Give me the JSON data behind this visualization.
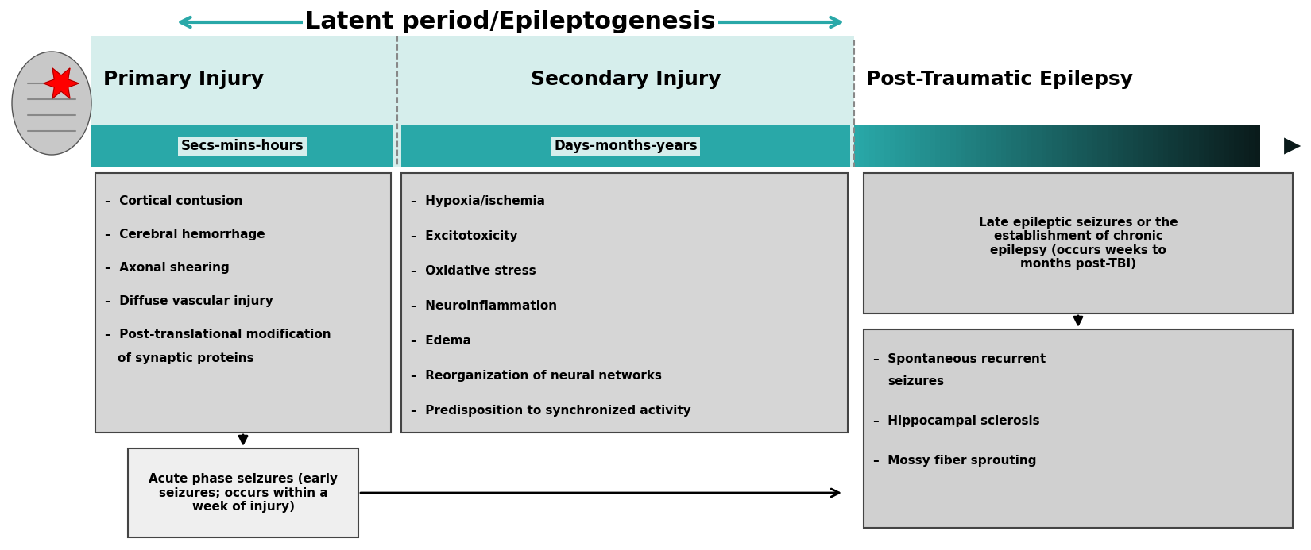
{
  "title": "Latent period/Epileptogenesis",
  "title_fontsize": 22,
  "background_color": "#ffffff",
  "teal_color": "#29a8a8",
  "teal_light_color": "#d6eeec",
  "box_gray": "#d6d6d6",
  "box_gray2": "#cccccc",
  "section1_title": "Primary Injury",
  "section2_title": "Secondary Injury",
  "section3_title": "Post-Traumatic Epilepsy",
  "timeline1_label": "Secs-mins-hours",
  "timeline2_label": "Days-months-years",
  "primary_items": [
    "Cortical contusion",
    "Cerebral hemorrhage",
    "Axonal shearing",
    "Diffuse vascular injury",
    "Post-translational modification",
    "of synaptic proteins"
  ],
  "secondary_items": [
    "Hypoxia/ischemia",
    "Excitotoxicity",
    "Oxidative stress",
    "Neuroinflammation",
    "Edema",
    "Reorganization of neural networks",
    "Predisposition to synchronized activity"
  ],
  "acute_seizure_text": "Acute phase seizures (early\nseizures; occurs within a\nweek of injury)",
  "late_epilepsy_text": "Late epileptic seizures or the\nestablishment of chronic\nepilepsy (occurs weeks to\nmonths post-TBI)",
  "chronic_items": [
    "Spontaneous recurrent",
    "seizures",
    "Hippocampal sclerosis",
    "Mossy fiber sprouting"
  ]
}
